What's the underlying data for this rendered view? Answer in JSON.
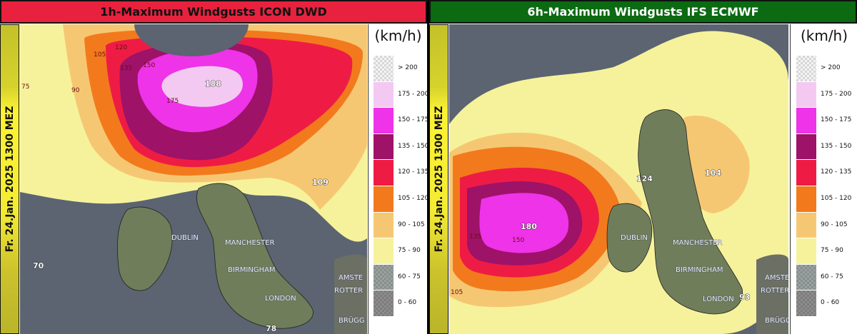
{
  "panels": [
    {
      "title": "1h-Maximum Windgusts ICON DWD",
      "title_color": "#e8223e",
      "date": "Fr. 24.Jan. 2025 1300 MEZ",
      "unit": "(km/h)",
      "cities": [
        "DUBLIN",
        "MANCHESTER",
        "BIRMINGHAM",
        "LONDON",
        "AMSTE",
        "ROTTER",
        "BRÜGG"
      ],
      "values": [
        "188",
        "109",
        "70",
        "78"
      ],
      "contour_labels": [
        "105",
        "120",
        "135",
        "150",
        "175",
        "90",
        "75"
      ]
    },
    {
      "title": "6h-Maximum Windgusts IFS ECMWF",
      "title_color": "#0b6a12",
      "date": "Fr. 24.Jan. 2025 1300 MEZ",
      "unit": "(km/h)",
      "cities": [
        "DUBLIN",
        "MANCHESTER",
        "BIRMINGHAM",
        "LONDON",
        "AMSTE",
        "ROTTER",
        "BRÜGG"
      ],
      "values": [
        "180",
        "124",
        "104",
        "93"
      ],
      "contour_labels": [
        "150",
        "135",
        "105"
      ]
    }
  ],
  "legend": [
    {
      "label": "> 200",
      "color": "#f4f4f4"
    },
    {
      "label": "175 - 200",
      "color": "#f3c9f1"
    },
    {
      "label": "150 - 175",
      "color": "#ee33e8"
    },
    {
      "label": "135 - 150",
      "color": "#9e1268"
    },
    {
      "label": "120 - 135",
      "color": "#ee1c45"
    },
    {
      "label": "105 - 120",
      "color": "#f27a1d"
    },
    {
      "label": "90 - 105",
      "color": "#f6c772"
    },
    {
      "label": "75 - 90",
      "color": "#f6f29c"
    },
    {
      "label": "60 - 75",
      "color": "#9aa2a0"
    },
    {
      "label": "0 - 60",
      "color": "#8d8d8d"
    }
  ]
}
